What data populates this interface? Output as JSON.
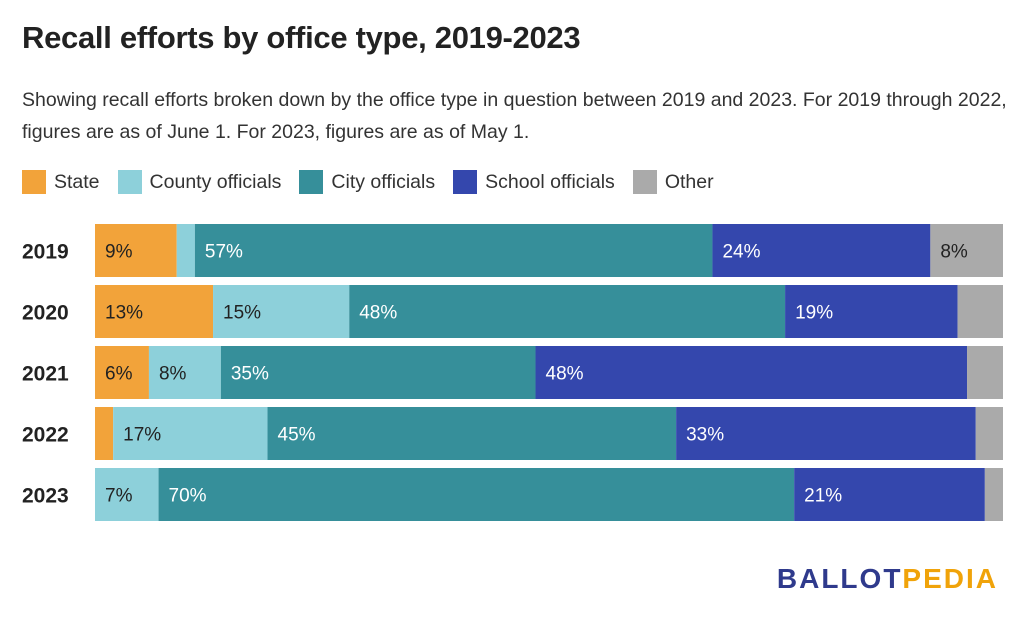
{
  "title": "Recall efforts by office type, 2019-2023",
  "subtitle": "Showing recall efforts broken down by the office type in question between 2019 and 2023. For 2019 through 2022, figures are as of June 1. For 2023, figures are as of May 1.",
  "logo": {
    "part_a": "BALLOT",
    "part_b": "PEDIA"
  },
  "chart_data": {
    "type": "bar",
    "orientation": "horizontal",
    "stacked": true,
    "normalized_to_percent": true,
    "categories": [
      "2019",
      "2020",
      "2021",
      "2022",
      "2023"
    ],
    "legend_position": "top-left",
    "series": [
      {
        "name": "State",
        "color": "#f2a33a",
        "values": [
          9,
          13,
          6,
          2,
          0
        ],
        "labels": [
          "9%",
          "13%",
          "6%",
          "",
          ""
        ]
      },
      {
        "name": "County officials",
        "color": "#8dd0da",
        "values": [
          2,
          15,
          8,
          17,
          7
        ],
        "labels": [
          "",
          "15%",
          "8%",
          "17%",
          "7%"
        ]
      },
      {
        "name": "City officials",
        "color": "#368f9a",
        "values": [
          57,
          48,
          35,
          45,
          70
        ],
        "labels": [
          "57%",
          "48%",
          "35%",
          "45%",
          "70%"
        ]
      },
      {
        "name": "School officials",
        "color": "#3447ad",
        "values": [
          24,
          19,
          48,
          33,
          21
        ],
        "labels": [
          "24%",
          "19%",
          "48%",
          "33%",
          "21%"
        ]
      },
      {
        "name": "Other",
        "color": "#aaaaaa",
        "values": [
          8,
          5,
          4,
          3,
          2
        ],
        "labels": [
          "8%",
          "",
          "",
          "",
          ""
        ]
      }
    ]
  }
}
